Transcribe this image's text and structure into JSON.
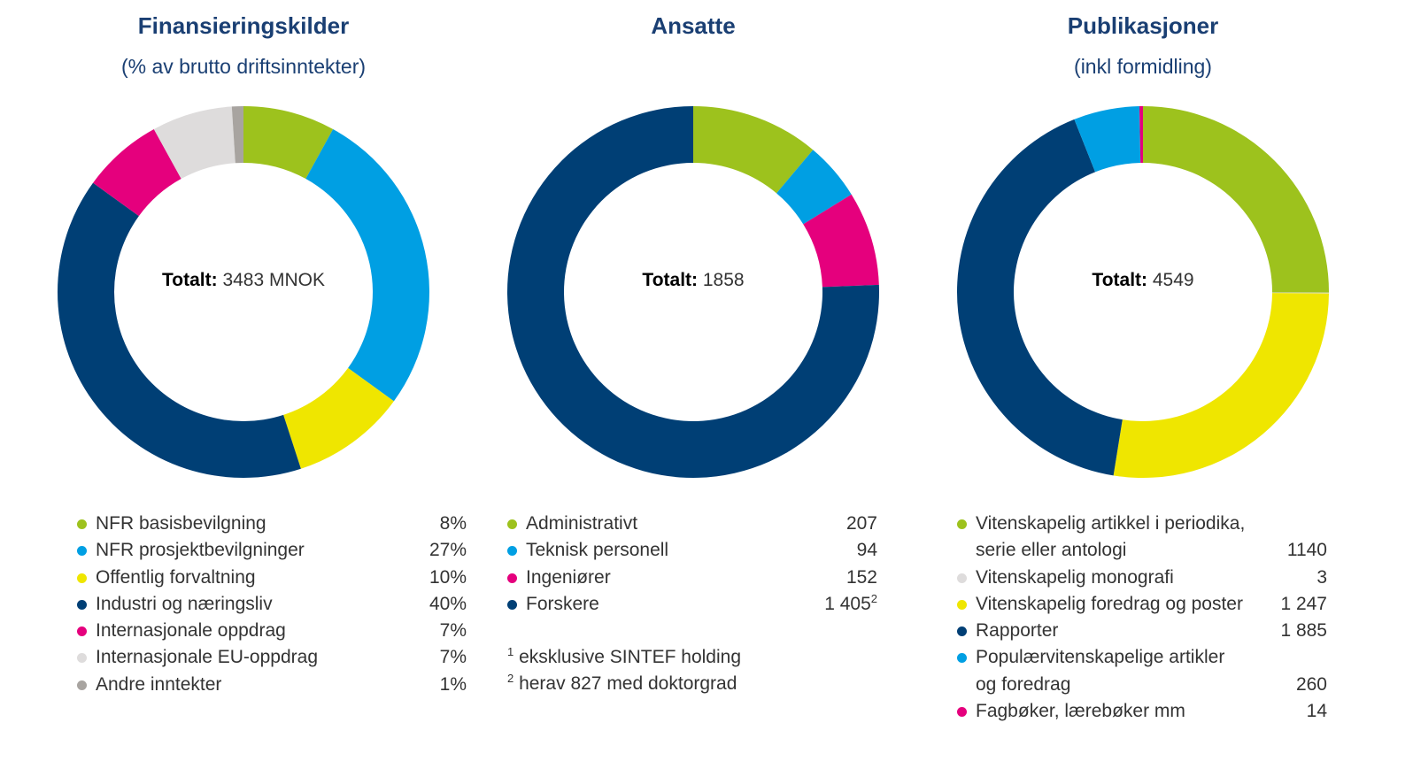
{
  "colors": {
    "green": "#9dc21d",
    "light_blue": "#009fe3",
    "yellow": "#efe600",
    "dark_blue": "#003f75",
    "magenta": "#e5007d",
    "light_grey": "#dedcdc",
    "grey": "#a8a4a0",
    "title_blue": "#1a3f73"
  },
  "chart_data": [
    {
      "type": "pie",
      "title": "Finansieringskilder",
      "subtitle": "(% av brutto driftsinntekter)",
      "center_label": "Totalt:",
      "center_value": "3483 MNOK",
      "slices": [
        {
          "label": "NFR basisbevilgning",
          "value": 8,
          "display": "8%",
          "color": "#9dc21d"
        },
        {
          "label": "NFR prosjektbevilgninger",
          "value": 27,
          "display": "27%",
          "color": "#009fe3"
        },
        {
          "label": "Offentlig forvaltning",
          "value": 10,
          "display": "10%",
          "color": "#efe600"
        },
        {
          "label": "Industri og næringsliv",
          "value": 40,
          "display": "40%",
          "color": "#003f75"
        },
        {
          "label": "Internasjonale oppdrag",
          "value": 7,
          "display": "7%",
          "color": "#e5007d"
        },
        {
          "label": "Internasjonale EU-oppdrag",
          "value": 7,
          "display": "7%",
          "color": "#dedcdc"
        },
        {
          "label": "Andre inntekter",
          "value": 1,
          "display": "1%",
          "color": "#a8a4a0"
        }
      ]
    },
    {
      "type": "pie",
      "title": "Ansatte",
      "subtitle": "",
      "center_label": "Totalt:",
      "center_value": "1858",
      "slices": [
        {
          "label": "Administrativt",
          "value": 207,
          "display": "207",
          "color": "#9dc21d"
        },
        {
          "label": "Teknisk personell",
          "value": 94,
          "display": "94",
          "color": "#009fe3"
        },
        {
          "label": "Ingeniører",
          "value": 152,
          "display": "152",
          "color": "#e5007d"
        },
        {
          "label": "Forskere",
          "value": 1405,
          "display": "1 405",
          "sup": "2",
          "color": "#003f75"
        }
      ],
      "footnotes": [
        {
          "mark": "1",
          "text": "eksklusive SINTEF holding"
        },
        {
          "mark": "2",
          "text": "herav 827 med doktorgrad"
        }
      ]
    },
    {
      "type": "pie",
      "title": "Publikasjoner",
      "subtitle": "(inkl formidling)",
      "center_label": "Totalt:",
      "center_value": "4549",
      "slices": [
        {
          "label": "Vitenskapelig artikkel i periodika,",
          "label2": "serie eller antologi",
          "value": 1140,
          "display": "1140",
          "color": "#9dc21d"
        },
        {
          "label": "Vitenskapelig monografi",
          "value": 3,
          "display": "3",
          "color": "#dedcdc"
        },
        {
          "label": "Vitenskapelig foredrag og poster",
          "value": 1247,
          "display": "1 247",
          "color": "#efe600"
        },
        {
          "label": "Rapporter",
          "value": 1885,
          "display": "1 885",
          "color": "#003f75"
        },
        {
          "label": "Populærvitenskapelige artikler",
          "label2": "og foredrag",
          "value": 260,
          "display": "260",
          "color": "#009fe3"
        },
        {
          "label": "Fagbøker, lærebøker mm",
          "value": 14,
          "display": "14",
          "color": "#e5007d"
        }
      ]
    }
  ]
}
